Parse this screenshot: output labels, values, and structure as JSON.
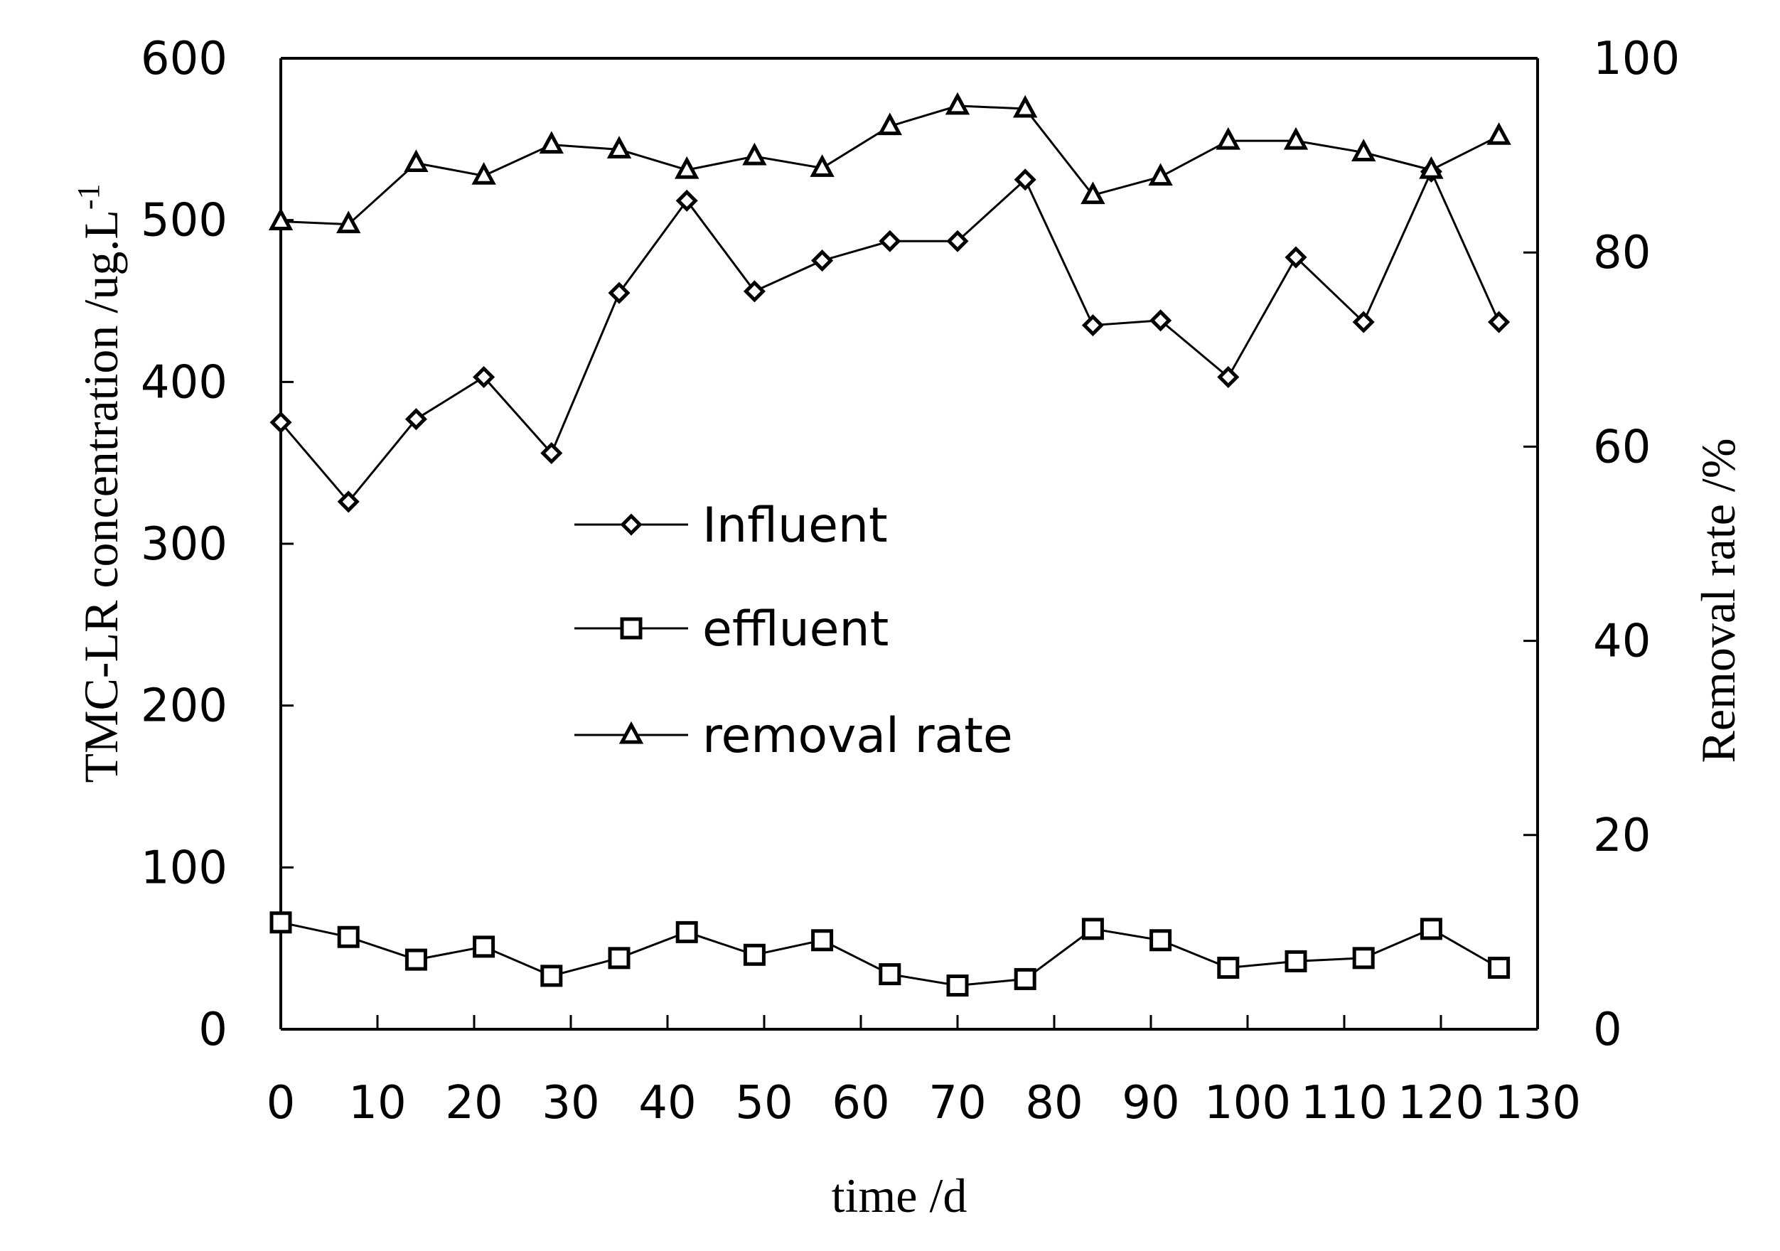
{
  "chart_data": {
    "type": "line",
    "x": [
      0,
      7,
      14,
      21,
      28,
      35,
      42,
      49,
      56,
      63,
      70,
      77,
      84,
      91,
      98,
      105,
      112,
      119,
      126
    ],
    "series": [
      {
        "name": "Influent",
        "axis": "left",
        "marker": "diamond",
        "values": [
          375,
          326,
          377,
          403,
          356,
          455,
          512,
          456,
          475,
          487,
          487,
          525,
          435,
          438,
          403,
          477,
          437,
          530,
          437
        ]
      },
      {
        "name": "effluent",
        "axis": "left",
        "marker": "square",
        "values": [
          66,
          57,
          43,
          51,
          33,
          44,
          60,
          46,
          55,
          34,
          27,
          31,
          62,
          55,
          38,
          42,
          44,
          62,
          38
        ]
      },
      {
        "name": "removal rate",
        "axis": "right",
        "marker": "triangle",
        "values": [
          83.2,
          82.9,
          89.2,
          87.9,
          91.1,
          90.6,
          88.5,
          89.9,
          88.7,
          93.0,
          95.1,
          94.8,
          85.9,
          87.8,
          91.5,
          91.5,
          90.3,
          88.5,
          92.0
        ]
      }
    ],
    "xlabel": "time /d",
    "ylabel_left": "TMC-LR concentration /ug.L",
    "ylabel_left_sup": "-1",
    "ylabel_right": "Removal rate /%",
    "xlim": [
      0,
      130
    ],
    "ylim_left": [
      0,
      600
    ],
    "ylim_right": [
      0,
      100
    ],
    "xticks": [
      0,
      10,
      20,
      30,
      40,
      50,
      60,
      70,
      80,
      90,
      100,
      110,
      120,
      130
    ],
    "yticks_left": [
      0,
      100,
      200,
      300,
      400,
      500,
      600
    ],
    "yticks_right": [
      0,
      20,
      40,
      60,
      80,
      100
    ],
    "legend_position": "center-left",
    "grid": false
  }
}
